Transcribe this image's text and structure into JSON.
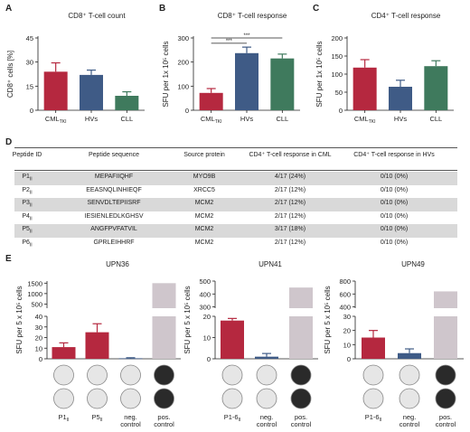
{
  "panel_letters": [
    "A",
    "B",
    "C",
    "D",
    "E"
  ],
  "colors": {
    "red": "#b5283f",
    "blue": "#3f5b86",
    "green": "#3f7a5d",
    "gray": "#cfc6cc"
  },
  "chart_data": [
    {
      "type": "bar",
      "title": "CD8⁺ T-cell count",
      "ylabel": "CD8⁺ cells [%]",
      "categories": [
        "CML",
        "HVs",
        "CLL"
      ],
      "category_subscripts": [
        "TKI",
        "",
        ""
      ],
      "values": [
        24,
        22,
        9
      ],
      "errors": [
        5.5,
        3,
        2.5
      ],
      "ylim": [
        0,
        45
      ],
      "yticks": [
        "0",
        "15",
        "30",
        "45"
      ],
      "colors": [
        "#b5283f",
        "#3f5b86",
        "#3f7a5d"
      ]
    },
    {
      "type": "bar",
      "title": "CD8⁺ T-cell response",
      "ylabel": "SFU per 1x 10⁵ cells",
      "categories": [
        "CML",
        "HVs",
        "CLL"
      ],
      "category_subscripts": [
        "TKI",
        "",
        ""
      ],
      "values": [
        72,
        237,
        215
      ],
      "errors": [
        18,
        25,
        18
      ],
      "ylim": [
        0,
        300
      ],
      "yticks": [
        "0",
        "100",
        "200",
        "300"
      ],
      "significance": [
        "***",
        "***"
      ],
      "colors": [
        "#b5283f",
        "#3f5b86",
        "#3f7a5d"
      ]
    },
    {
      "type": "bar",
      "title": "CD4⁺ T-cell response",
      "ylabel": "SFU per 1x 10⁵ cells",
      "categories": [
        "CML",
        "HVs",
        "CLL"
      ],
      "category_subscripts": [
        "TKI",
        "",
        ""
      ],
      "values": [
        118,
        65,
        122
      ],
      "errors": [
        22,
        18,
        15
      ],
      "ylim": [
        0,
        200
      ],
      "yticks": [
        "0",
        "50",
        "100",
        "150",
        "200"
      ],
      "colors": [
        "#b5283f",
        "#3f5b86",
        "#3f7a5d"
      ]
    },
    {
      "type": "table",
      "headers": [
        "Peptide ID",
        "Peptide sequence",
        "Source protein",
        "CD4⁺ T-cell response in CML",
        "CD4⁺ T-cell response in HVs"
      ],
      "rows": [
        [
          "P1",
          "MEPAFIIQHF",
          "MYO9B",
          "4/17 (24%)",
          "0/10 (0%)"
        ],
        [
          "P2",
          "EEASNQLINHIEQF",
          "XRCC5",
          "2/17 (12%)",
          "0/10 (0%)"
        ],
        [
          "P3",
          "SENVDLTEPIISRF",
          "MCM2",
          "2/17 (12%)",
          "0/10 (0%)"
        ],
        [
          "P4",
          "IESIENLEDLKGHSV",
          "MCM2",
          "2/17 (12%)",
          "0/10 (0%)"
        ],
        [
          "P5",
          "ANGFPVFATVIL",
          "MCM2",
          "3/17 (18%)",
          "0/10 (0%)"
        ],
        [
          "P6",
          "GPRLEIHHRF",
          "MCM2",
          "2/17 (12%)",
          "0/10 (0%)"
        ]
      ],
      "id_subscript": "II"
    },
    {
      "type": "bar",
      "title": "UPN36",
      "ylabel": "SFU per 5 x 10⁵ cells",
      "categories": [
        "P1",
        "P5",
        "neg. control",
        "pos. control"
      ],
      "category_subscripts": [
        "II",
        "II",
        "",
        ""
      ],
      "values": [
        11,
        25,
        0.5,
        1500
      ],
      "errors": [
        4,
        8,
        0.5,
        0
      ],
      "axis_break": true,
      "yticks_lower": [
        "0",
        "10",
        "20",
        "30",
        "40"
      ],
      "yticks_upper": [
        "500",
        "1000",
        "1500"
      ],
      "colors": [
        "#b5283f",
        "#b5283f",
        "#3f5b86",
        "#cfc6cc"
      ]
    },
    {
      "type": "bar",
      "title": "UPN41",
      "ylabel": "SFU per 5 x 10⁵ cells",
      "categories": [
        "P1-6",
        "neg. control",
        "pos. control"
      ],
      "category_subscripts": [
        "II",
        "",
        ""
      ],
      "values": [
        18,
        1,
        450
      ],
      "errors": [
        1,
        1.5,
        0
      ],
      "axis_break": true,
      "yticks_lower": [
        "0",
        "10",
        "20"
      ],
      "yticks_upper": [
        "300",
        "400",
        "500"
      ],
      "colors": [
        "#b5283f",
        "#3f5b86",
        "#cfc6cc"
      ]
    },
    {
      "type": "bar",
      "title": "UPN49",
      "ylabel": "SFU per 5 x 10⁵ cells",
      "categories": [
        "P1-6",
        "neg. control",
        "pos. control"
      ],
      "category_subscripts": [
        "II",
        "",
        ""
      ],
      "values": [
        15,
        4,
        640
      ],
      "errors": [
        5,
        3,
        0
      ],
      "axis_break": true,
      "yticks_lower": [
        "0",
        "10",
        "20",
        "30"
      ],
      "yticks_upper": [
        "400",
        "600",
        "800"
      ],
      "colors": [
        "#b5283f",
        "#3f5b86",
        "#cfc6cc"
      ]
    }
  ]
}
